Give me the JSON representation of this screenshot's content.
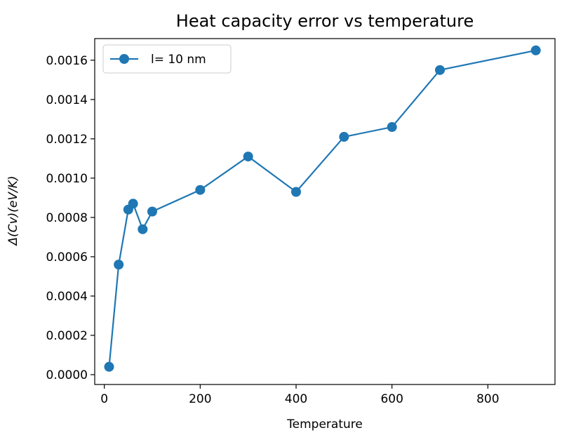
{
  "chart_data": {
    "type": "line",
    "title": "Heat capacity error vs temperature",
    "xlabel": "Temperature",
    "ylabel": "Δ(Cv)(eV/K)",
    "xlim": [
      -20,
      940
    ],
    "ylim": [
      -5e-05,
      0.00171
    ],
    "x_ticks": [
      0,
      200,
      400,
      600,
      800
    ],
    "x_tick_labels": [
      "0",
      "200",
      "400",
      "600",
      "800"
    ],
    "y_ticks": [
      0.0,
      0.0002,
      0.0004,
      0.0006,
      0.0008,
      0.001,
      0.0012,
      0.0014,
      0.0016
    ],
    "y_tick_labels": [
      "0.0000",
      "0.0002",
      "0.0004",
      "0.0006",
      "0.0008",
      "0.0010",
      "0.0012",
      "0.0014",
      "0.0016"
    ],
    "grid": false,
    "legend_position": "upper-left",
    "series": [
      {
        "name": "l= 10 nm",
        "color": "#1f77b4",
        "marker": "circle",
        "x": [
          10,
          30,
          50,
          60,
          80,
          100,
          200,
          300,
          400,
          500,
          600,
          700,
          900
        ],
        "y": [
          4e-05,
          0.00056,
          0.00084,
          0.00087,
          0.00074,
          0.00083,
          0.00094,
          0.00111,
          0.00093,
          0.00121,
          0.00126,
          0.00155,
          0.00165
        ]
      }
    ]
  }
}
